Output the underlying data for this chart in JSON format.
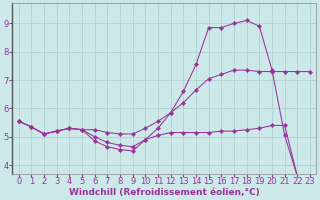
{
  "background_color": "#cce8e8",
  "grid_color": "#aacccc",
  "line_color": "#993399",
  "xlabel": "Windchill (Refroidissement éolien,°C)",
  "xlabel_color": "#993399",
  "xlabel_fontsize": 6.5,
  "tick_color": "#993399",
  "tick_fontsize": 6.0,
  "xlim": [
    -0.5,
    23.5
  ],
  "ylim": [
    3.7,
    9.7
  ],
  "xticks": [
    0,
    1,
    2,
    3,
    4,
    5,
    6,
    7,
    8,
    9,
    10,
    11,
    12,
    13,
    14,
    15,
    16,
    17,
    18,
    19,
    20,
    21,
    22,
    23
  ],
  "yticks": [
    4,
    5,
    6,
    7,
    8,
    9
  ],
  "line1_x": [
    0,
    1,
    2,
    3,
    4,
    5,
    6,
    7,
    8,
    9,
    10,
    11,
    12,
    13,
    14,
    15,
    16,
    17,
    18,
    19,
    20,
    21,
    22,
    23
  ],
  "line1_y": [
    5.55,
    5.35,
    5.1,
    5.2,
    5.3,
    5.25,
    5.25,
    5.15,
    5.1,
    5.1,
    5.3,
    5.55,
    5.85,
    6.2,
    6.65,
    7.05,
    7.2,
    7.35,
    7.35,
    7.3,
    7.3,
    7.3,
    7.3,
    7.3
  ],
  "line2_x": [
    0,
    1,
    2,
    3,
    4,
    5,
    6,
    7,
    8,
    9,
    10,
    11,
    12,
    13,
    14,
    15,
    16,
    17,
    18,
    19,
    20,
    21,
    22,
    23
  ],
  "line2_y": [
    5.55,
    5.35,
    5.1,
    5.2,
    5.3,
    5.25,
    4.85,
    4.65,
    4.55,
    4.5,
    4.9,
    5.3,
    5.85,
    6.6,
    7.55,
    8.85,
    8.85,
    9.0,
    9.1,
    8.9,
    7.35,
    5.05,
    3.6,
    3.55
  ],
  "line3_x": [
    0,
    1,
    2,
    3,
    4,
    5,
    6,
    7,
    8,
    9,
    10,
    11,
    12,
    13,
    14,
    15,
    16,
    17,
    18,
    19,
    20,
    21,
    22,
    23
  ],
  "line3_y": [
    5.55,
    5.35,
    5.1,
    5.2,
    5.3,
    5.25,
    5.0,
    4.8,
    4.7,
    4.65,
    4.9,
    5.05,
    5.15,
    5.15,
    5.15,
    5.15,
    5.2,
    5.2,
    5.25,
    5.3,
    5.4,
    5.4,
    3.6,
    3.55
  ]
}
